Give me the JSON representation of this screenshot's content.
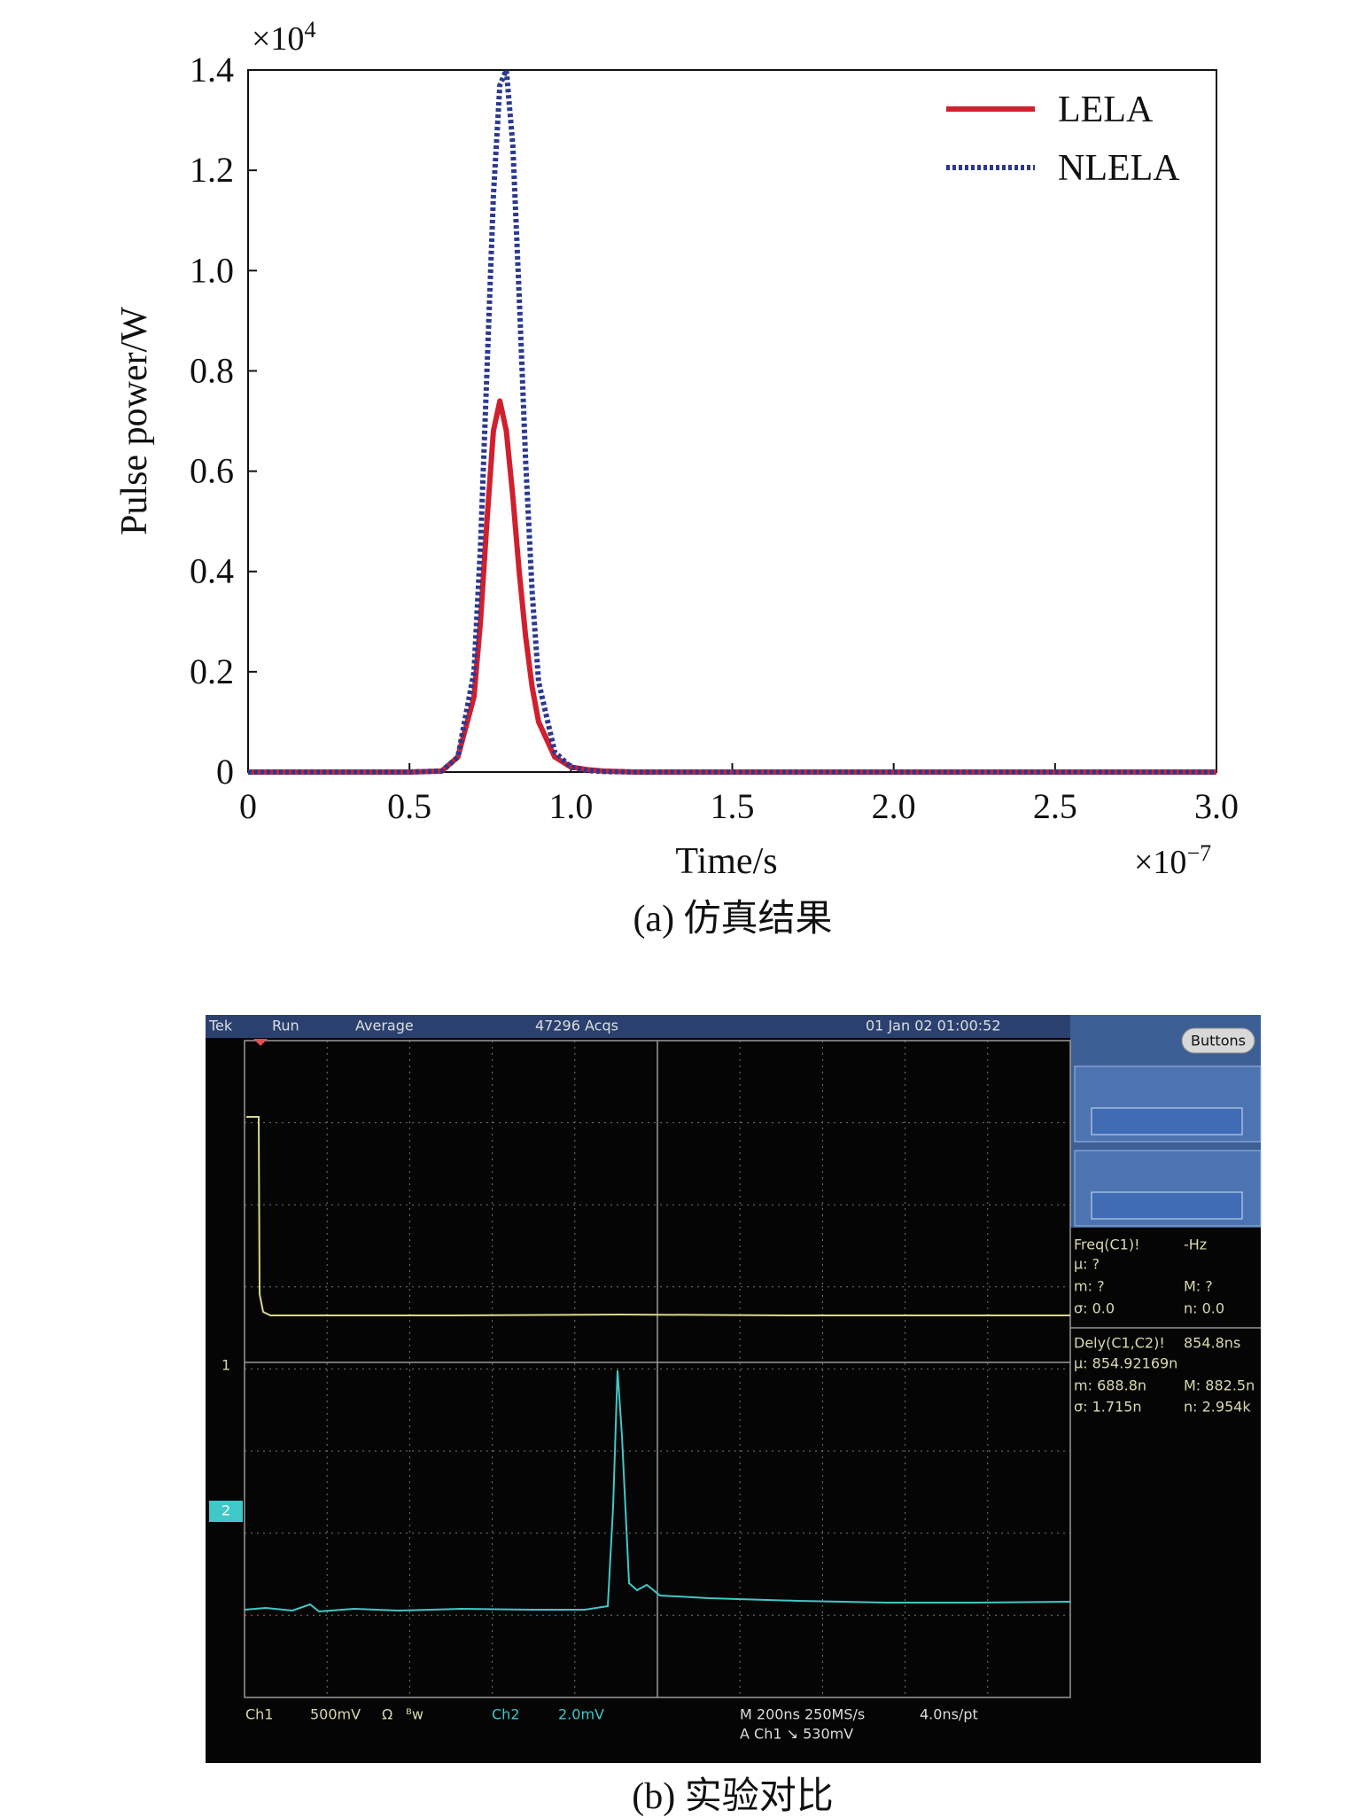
{
  "chart_data": {
    "type": "line",
    "title": "(a) 仿真结果",
    "x_label": "Time/s",
    "y_label": "Pulse power/W",
    "x_multiplier": {
      "base": "×10",
      "exponent": "−7"
    },
    "y_multiplier": {
      "base": "×10",
      "exponent": "4"
    },
    "x": [
      0,
      0.5,
      0.6,
      0.65,
      0.7,
      0.72,
      0.74,
      0.76,
      0.78,
      0.8,
      0.82,
      0.84,
      0.86,
      0.88,
      0.9,
      0.95,
      1.0,
      1.05,
      1.1,
      1.2,
      3.0
    ],
    "series": [
      {
        "name": "LELA",
        "color": "#d0202e",
        "style": "solid",
        "values": [
          0,
          0,
          0.002,
          0.03,
          0.15,
          0.3,
          0.5,
          0.68,
          0.74,
          0.68,
          0.55,
          0.4,
          0.27,
          0.17,
          0.1,
          0.03,
          0.01,
          0.005,
          0.002,
          0,
          0
        ]
      },
      {
        "name": "NLELA",
        "color": "#2b3990",
        "style": "dotted",
        "values": [
          0,
          0,
          0.002,
          0.03,
          0.2,
          0.45,
          0.8,
          1.15,
          1.37,
          1.4,
          1.25,
          0.95,
          0.62,
          0.36,
          0.18,
          0.04,
          0.01,
          0.003,
          0.001,
          0,
          0
        ]
      }
    ],
    "xlim": [
      0,
      3
    ],
    "ylim": [
      0,
      1.4
    ],
    "xticks": [
      0,
      0.5,
      {
        "value": 1,
        "label": "1.0"
      },
      1.5,
      {
        "value": 2,
        "label": "2.0"
      },
      2.5,
      {
        "value": 3,
        "label": "3.0"
      }
    ],
    "yticks": [
      0,
      0.2,
      0.4,
      0.6,
      0.8,
      {
        "value": 1,
        "label": "1.0"
      },
      1.2,
      1.4
    ],
    "grid": false,
    "legend": "upper right"
  },
  "scope": {
    "caption": "(b) 实验对比",
    "top_bar": [
      "Tek",
      "Run",
      "Average",
      "47296 Acqs",
      "01 Jan 02 01:00:52"
    ],
    "button": "Buttons",
    "freq": {
      "title": "Freq(C1)!",
      "value": "-Hz",
      "mu": "µ: ?",
      "m": "m: ?",
      "M": "M: ?",
      "sigma": "σ: 0.0",
      "n": "n: 0.0"
    },
    "dely": {
      "title": "Dely(C1,C2)!",
      "value": "854.8ns",
      "mu": "µ: 854.92169n",
      "m": "m: 688.8n",
      "M": "M: 882.5n",
      "sigma": "σ: 1.715n",
      "n": "n: 2.954k"
    },
    "markers": [
      "1",
      "2"
    ],
    "bottom": [
      "Ch1",
      "500mV",
      "Ω",
      "ᴮw",
      "Ch2",
      "2.0mV",
      "M 200ns 250MS/s",
      "4.0ns/pt",
      "A Ch1 ↘ 530mV"
    ]
  }
}
